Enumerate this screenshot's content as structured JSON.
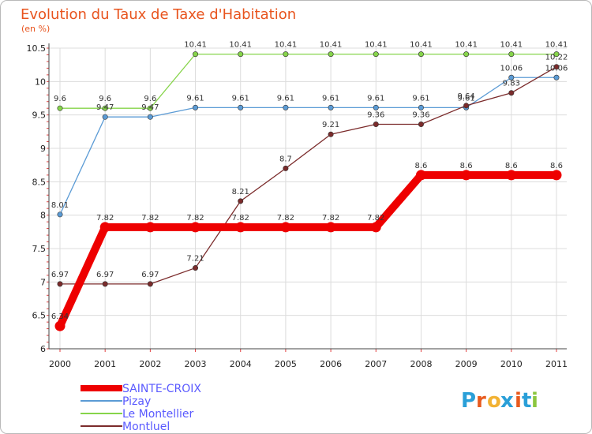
{
  "chart_data": {
    "type": "line",
    "title": "Evolution du Taux de Taxe d'Habitation",
    "ylabel": "(en %)",
    "xlabel": "",
    "ylim": [
      6,
      10.5
    ],
    "yticks": [
      "6",
      "6.5",
      "7",
      "7.5",
      "8",
      "8.5",
      "9",
      "9.5",
      "10",
      "10.5"
    ],
    "categories": [
      "2000",
      "2001",
      "2002",
      "2003",
      "2004",
      "2005",
      "2006",
      "2007",
      "2008",
      "2009",
      "2010",
      "2011"
    ],
    "series": [
      {
        "name": "SAINTE-CROIX",
        "color": "#ee0000",
        "values": [
          6.34,
          7.82,
          7.82,
          7.82,
          7.82,
          7.82,
          7.82,
          7.82,
          8.6,
          8.6,
          8.6,
          8.6
        ],
        "labels": [
          "6.34",
          "7.82",
          "7.82",
          "7.82",
          "7.82",
          "7.82",
          "7.82",
          "7.82",
          "8.6",
          "8.6",
          "8.6",
          "8.6"
        ]
      },
      {
        "name": "Pizay",
        "color": "#5b9bd5",
        "values": [
          8.01,
          9.47,
          9.47,
          9.61,
          9.61,
          9.61,
          9.61,
          9.61,
          9.61,
          9.61,
          10.06,
          10.06
        ],
        "labels": [
          "8.01",
          "9.47",
          "9.47",
          "9.61",
          "9.61",
          "9.61",
          "9.61",
          "9.61",
          "9.61",
          "9.61",
          "10.06",
          "10.06"
        ]
      },
      {
        "name": "Le Montellier",
        "color": "#86d44a",
        "values": [
          9.6,
          9.6,
          9.6,
          10.41,
          10.41,
          10.41,
          10.41,
          10.41,
          10.41,
          10.41,
          10.41,
          10.41
        ],
        "labels": [
          "9.6",
          "9.6",
          "9.6",
          "10.41",
          "10.41",
          "10.41",
          "10.41",
          "10.41",
          "10.41",
          "10.41",
          "10.41",
          "10.41"
        ]
      },
      {
        "name": "Montluel",
        "color": "#7b2b2b",
        "values": [
          6.97,
          6.97,
          6.97,
          7.21,
          8.21,
          8.7,
          9.21,
          9.36,
          9.36,
          9.64,
          9.83,
          10.22
        ],
        "labels": [
          "6.97",
          "6.97",
          "6.97",
          "7.21",
          "8.21",
          "8.7",
          "9.21",
          "9.36",
          "9.36",
          "9.64",
          "9.83",
          "10.22"
        ]
      }
    ],
    "legend_position": "bottom-left"
  },
  "brand": {
    "letters": [
      "P",
      "r",
      "o",
      "x",
      "i",
      "t",
      "i"
    ],
    "colors": [
      "#2a9fd8",
      "#e85a1e",
      "#f2b233",
      "#2a9fd8",
      "#e85a1e",
      "#2a9fd8",
      "#8cc63f"
    ]
  }
}
